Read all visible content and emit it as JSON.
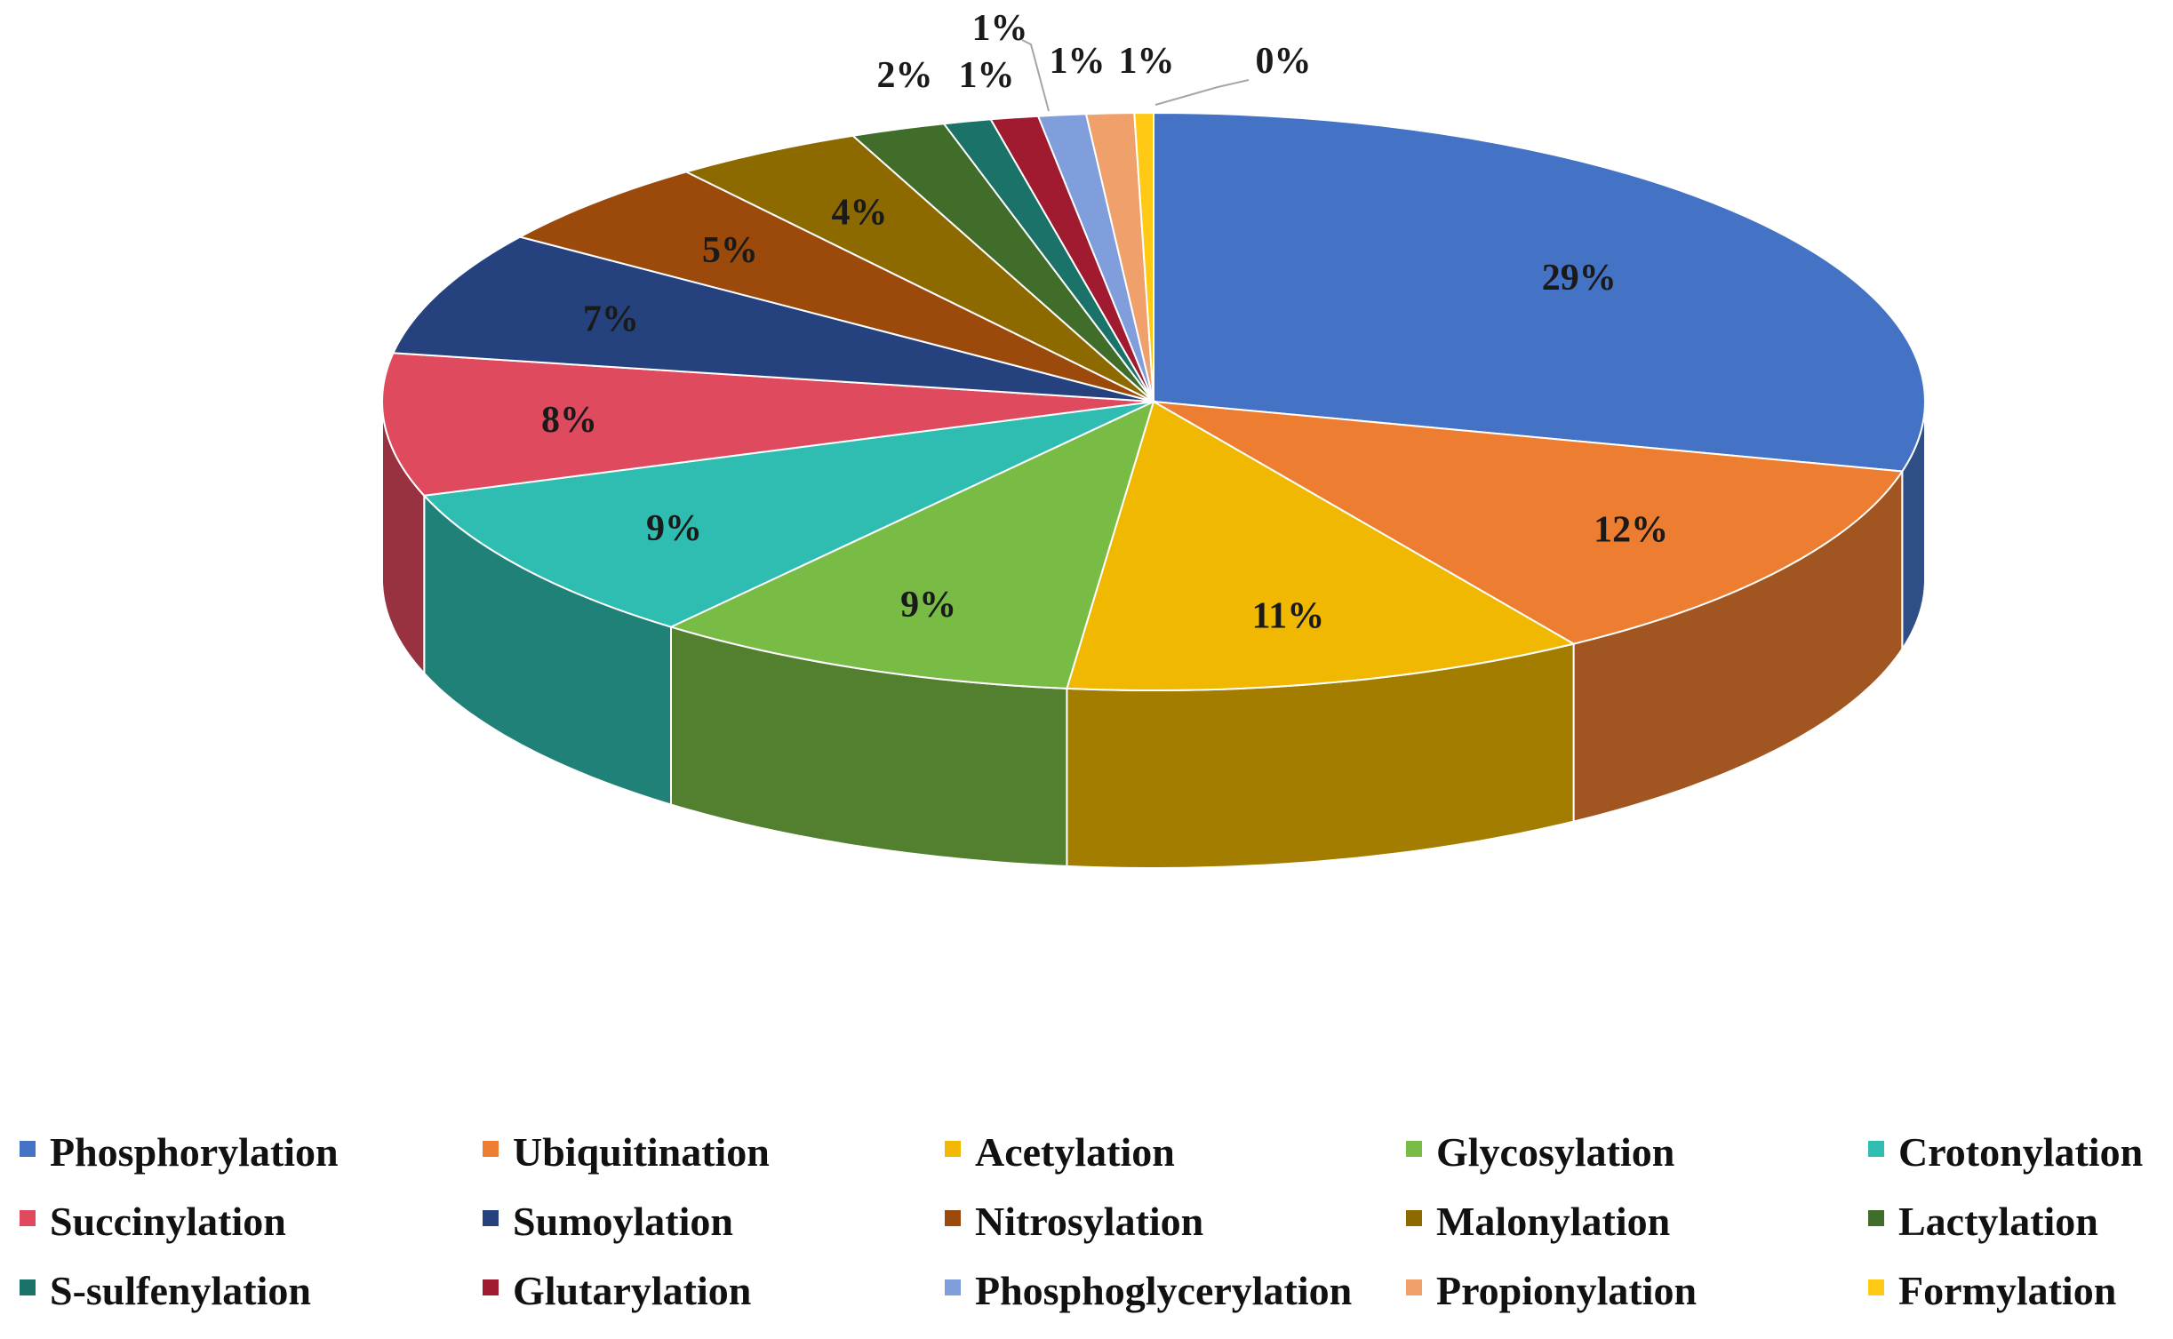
{
  "chart_data": {
    "type": "pie",
    "title": "",
    "legend_position": "bottom",
    "slices": [
      {
        "name": "Phosphorylation",
        "value": 29,
        "label": "29%",
        "color": "#4472C4"
      },
      {
        "name": "Ubiquitination",
        "value": 12,
        "label": "12%",
        "color": "#ED7D31"
      },
      {
        "name": "Acetylation",
        "value": 11,
        "label": "11%",
        "color": "#F0B800"
      },
      {
        "name": "Glycosylation",
        "value": 9,
        "label": "9%",
        "color": "#78BC45"
      },
      {
        "name": "Crotonylation",
        "value": 9,
        "label": "9%",
        "color": "#2EBDB0"
      },
      {
        "name": "Succinylation",
        "value": 8,
        "label": "8%",
        "color": "#E04A5E"
      },
      {
        "name": "Sumoylation",
        "value": 7,
        "label": "7%",
        "color": "#25427E"
      },
      {
        "name": "Nitrosylation",
        "value": 5,
        "label": "5%",
        "color": "#9C4A0C"
      },
      {
        "name": "Malonylation",
        "value": 4,
        "label": "4%",
        "color": "#8C6A00"
      },
      {
        "name": "Lactylation",
        "value": 2,
        "label": "2%",
        "color": "#406E2A"
      },
      {
        "name": "S-sulfenylation",
        "value": 1,
        "label": "1%",
        "color": "#1A7268"
      },
      {
        "name": "Glutarylation",
        "value": 1,
        "label": "1%",
        "color": "#A01A30"
      },
      {
        "name": "Phosphoglycerylation",
        "value": 1,
        "label": "1%",
        "color": "#7F9EDB"
      },
      {
        "name": "Propionylation",
        "value": 1,
        "label": "1%",
        "color": "#F0A06A"
      },
      {
        "name": "Formylation",
        "value": 0.4,
        "label": "0%",
        "color": "#FFC914"
      }
    ]
  }
}
